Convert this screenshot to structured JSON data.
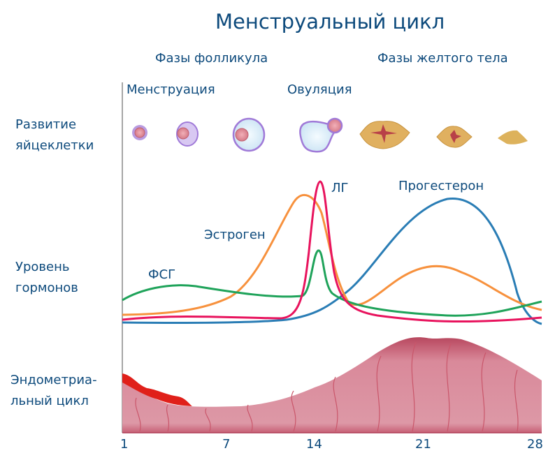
{
  "title": "Менструальный цикл",
  "phases": {
    "follicular": "Фазы фолликула",
    "luteal": "Фазы желтого тела"
  },
  "events": {
    "menstruation": "Менструация",
    "ovulation": "Овуляция"
  },
  "row_labels": {
    "egg": [
      "Развитие",
      "яйцеклетки"
    ],
    "hormones": [
      "Уровень",
      "гормонов"
    ],
    "endometrium": [
      "Эндометриа-",
      "льный цикл"
    ]
  },
  "hormones": {
    "fsh": {
      "label": "ФСГ",
      "color": "#1fa35a"
    },
    "estrogen": {
      "label": "Эстроген",
      "color": "#f7913d"
    },
    "lh": {
      "label": "ЛГ",
      "color": "#e8135d"
    },
    "progesterone": {
      "label": "Прогестерон",
      "color": "#2a7db5"
    }
  },
  "days": [
    "1",
    "7",
    "14",
    "21",
    "28"
  ],
  "colors": {
    "text": "#0d4a7c",
    "endometrium": "#d9899a",
    "blood": "#e0201a",
    "follicle": "#b99be0",
    "corpus_luteum": "#e0b060"
  }
}
